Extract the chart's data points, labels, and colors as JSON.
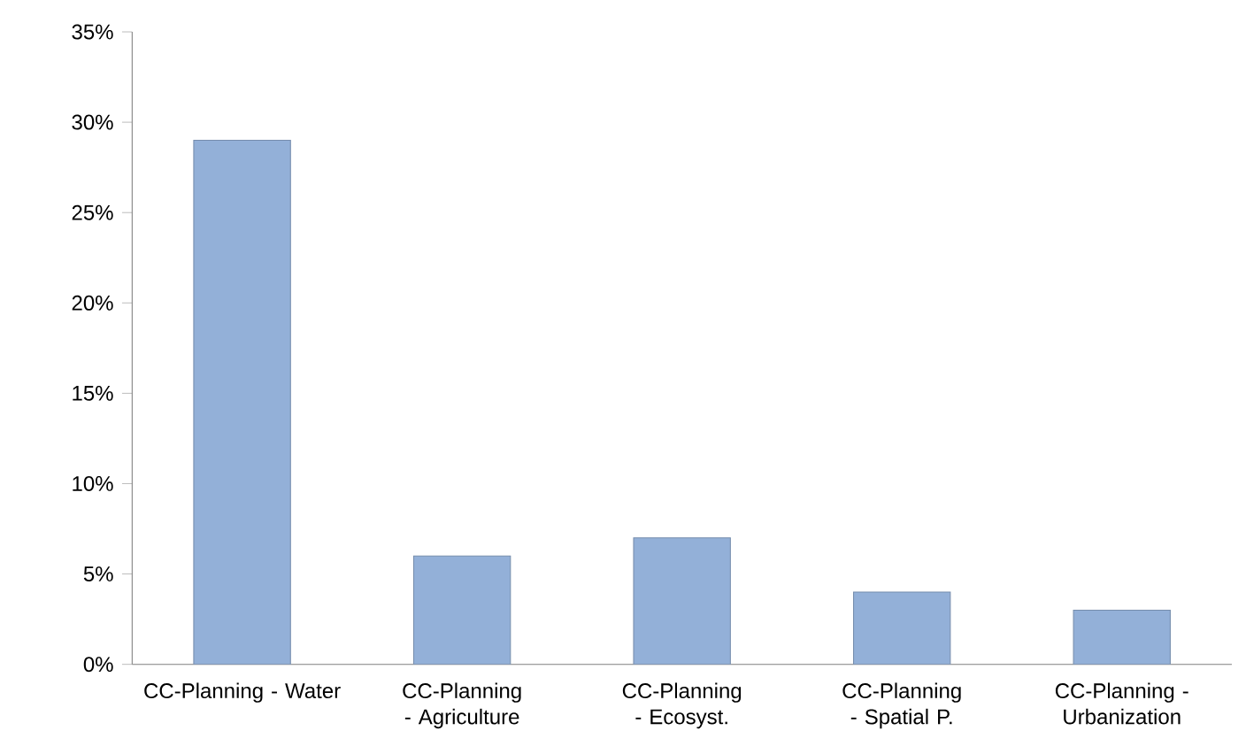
{
  "chart_data": {
    "type": "bar",
    "categories": [
      "CC-Planning - Water",
      "CC-Planning - Agriculture",
      "CC-Planning - Ecosyst.",
      "CC-Planning - Spatial P.",
      "CC-Planning - Urbanization"
    ],
    "values": [
      29,
      6,
      7,
      4,
      3
    ],
    "color": "#93b0d8",
    "ylim": [
      0,
      35
    ],
    "yticks": [
      {
        "value": 0,
        "label": "0%"
      },
      {
        "value": 5,
        "label": "5%"
      },
      {
        "value": 10,
        "label": "10%"
      },
      {
        "value": 15,
        "label": "15%"
      },
      {
        "value": 20,
        "label": "20%"
      },
      {
        "value": 25,
        "label": "25%"
      },
      {
        "value": 30,
        "label": "30%"
      },
      {
        "value": 35,
        "label": "35%"
      }
    ]
  }
}
